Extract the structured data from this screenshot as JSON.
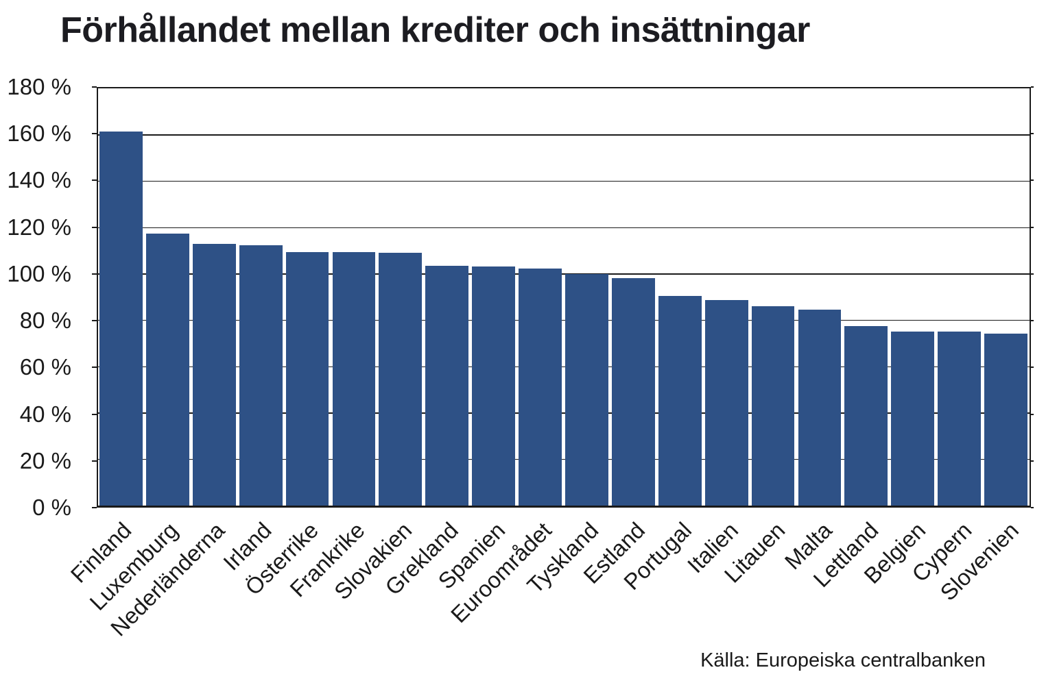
{
  "title": "Förhållandet mellan krediter och insättningar",
  "source": "Källa: Europeiska centralbanken",
  "chart_data": {
    "type": "bar",
    "title": "Förhållandet mellan krediter och insättningar",
    "categories": [
      "Finland",
      "Luxemburg",
      "Nederländerna",
      "Irland",
      "Österrike",
      "Frankrike",
      "Slovakien",
      "Grekland",
      "Spanien",
      "Euroområdet",
      "Tyskland",
      "Estland",
      "Portugal",
      "Italien",
      "Litauen",
      "Malta",
      "Lettland",
      "Belgien",
      "Cypern",
      "Slovenien"
    ],
    "values": [
      161.5,
      117.2,
      113,
      112.2,
      109.5,
      109.5,
      109.2,
      103.5,
      103.3,
      102.2,
      100,
      98.2,
      90.5,
      88.6,
      86,
      84.6,
      77.5,
      75,
      75,
      74.3
    ],
    "unit": "%",
    "xlabel": "",
    "ylabel": "",
    "ylim": [
      0,
      180
    ],
    "y_tick_step": 20,
    "y_tick_labels": [
      "180 %",
      "160 %",
      "140 %",
      "120 %",
      "100 %",
      "80 %",
      "60 %",
      "40 %",
      "20 %",
      "0 %"
    ],
    "grid": true,
    "legend": false,
    "bar_color": "#2e5186",
    "source": "Källa: Europeiska centralbanken"
  }
}
